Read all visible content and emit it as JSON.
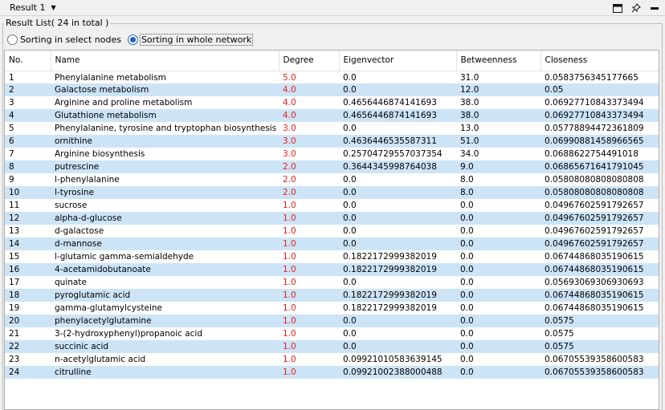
{
  "window": {
    "tab_label": "Result 1",
    "tab_dropdown_glyph": "▼",
    "icons": [
      "maximize-window-icon",
      "pin-icon",
      "minimize-icon"
    ]
  },
  "panel": {
    "title": "Result List( 24 in total )",
    "radio_options": [
      {
        "label": "Sorting in select nodes",
        "selected": false
      },
      {
        "label": "Sorting in whole network",
        "selected": true
      }
    ]
  },
  "table": {
    "columns": [
      "No.",
      "Name",
      "Degree",
      "Eigenvector",
      "Betweenness",
      "Closeness"
    ],
    "degree_color": "#e8201c",
    "row_highlight_color": "#cde4f7",
    "rows": [
      [
        "1",
        "Phenylalanine metabolism",
        "5.0",
        "0.0",
        "31.0",
        "0.0583756345177665"
      ],
      [
        "2",
        "Galactose metabolism",
        "4.0",
        "0.0",
        "12.0",
        "0.05"
      ],
      [
        "3",
        "Arginine and proline metabolism",
        "4.0",
        "0.4656446874141693",
        "38.0",
        "0.06927710843373494"
      ],
      [
        "4",
        "Glutathione metabolism",
        "4.0",
        "0.4656446874141693",
        "38.0",
        "0.06927710843373494"
      ],
      [
        "5",
        "Phenylalanine, tyrosine and tryptophan biosynthesis",
        "3.0",
        "0.0",
        "13.0",
        "0.05778894472361809"
      ],
      [
        "6",
        "ornithine",
        "3.0",
        "0.4636446535587311",
        "51.0",
        "0.06990881458966565"
      ],
      [
        "7",
        "Arginine biosynthesis",
        "3.0",
        "0.25704729557037354",
        "34.0",
        "0.0688622754491018"
      ],
      [
        "8",
        "putrescine",
        "2.0",
        "0.3644345998764038",
        "9.0",
        "0.06865671641791045"
      ],
      [
        "9",
        "l-phenylalanine",
        "2.0",
        "0.0",
        "8.0",
        "0.05808080808080808"
      ],
      [
        "10",
        "l-tyrosine",
        "2.0",
        "0.0",
        "8.0",
        "0.05808080808080808"
      ],
      [
        "11",
        "sucrose",
        "1.0",
        "0.0",
        "0.0",
        "0.04967602591792657"
      ],
      [
        "12",
        "alpha-d-glucose",
        "1.0",
        "0.0",
        "0.0",
        "0.04967602591792657"
      ],
      [
        "13",
        "d-galactose",
        "1.0",
        "0.0",
        "0.0",
        "0.04967602591792657"
      ],
      [
        "14",
        "d-mannose",
        "1.0",
        "0.0",
        "0.0",
        "0.04967602591792657"
      ],
      [
        "15",
        "l-glutamic gamma-semialdehyde",
        "1.0",
        "0.1822172999382019",
        "0.0",
        "0.06744868035190615"
      ],
      [
        "16",
        "4-acetamidobutanoate",
        "1.0",
        "0.1822172999382019",
        "0.0",
        "0.06744868035190615"
      ],
      [
        "17",
        "quinate",
        "1.0",
        "0.0",
        "0.0",
        "0.05693069306930693"
      ],
      [
        "18",
        "pyroglutamic acid",
        "1.0",
        "0.1822172999382019",
        "0.0",
        "0.06744868035190615"
      ],
      [
        "19",
        "gamma-glutamylcysteine",
        "1.0",
        "0.1822172999382019",
        "0.0",
        "0.06744868035190615"
      ],
      [
        "20",
        "phenylacetylglutamine",
        "1.0",
        "0.0",
        "0.0",
        "0.0575"
      ],
      [
        "21",
        "3-(2-hydroxyphenyl)propanoic acid",
        "1.0",
        "0.0",
        "0.0",
        "0.0575"
      ],
      [
        "22",
        "succinic acid",
        "1.0",
        "0.0",
        "0.0",
        "0.0575"
      ],
      [
        "23",
        "n-acetylglutamic acid",
        "1.0",
        "0.09921010583639145",
        "0.0",
        "0.06705539358600583"
      ],
      [
        "24",
        "citrulline",
        "1.0",
        "0.09921002388000488",
        "0.0",
        "0.06705539358600583"
      ]
    ]
  }
}
